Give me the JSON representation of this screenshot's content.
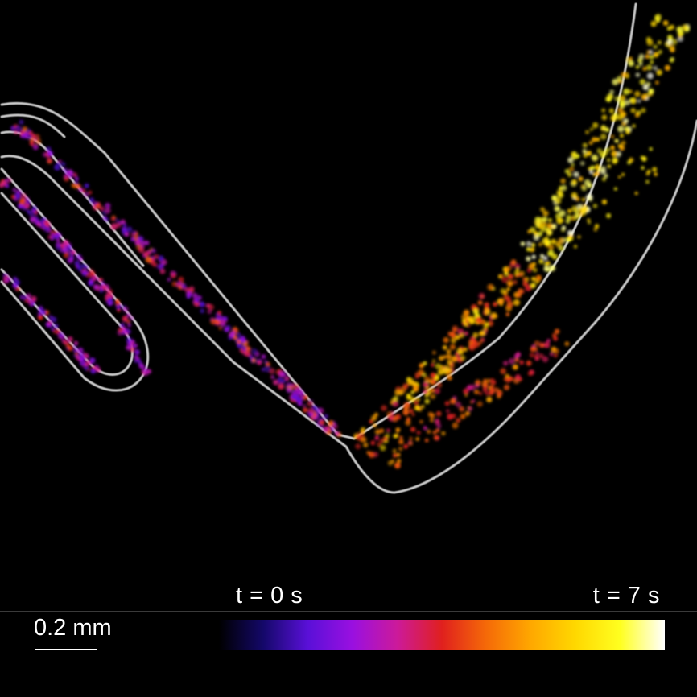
{
  "time_start_label": "t = 0 s",
  "time_end_label": "t = 7 s",
  "scale_label": "0.2 mm",
  "colormap": {
    "stops": [
      "#000000",
      "#14086a",
      "#5a10d8",
      "#9a10e0",
      "#cc1a9a",
      "#e0201e",
      "#f56a08",
      "#ffa800",
      "#ffd800",
      "#ffff20",
      "#ffffff"
    ]
  },
  "colors": {
    "background": "#000000",
    "channel_wall": "#c8c8c8",
    "divider": "#3a3a3a",
    "text": "#ffffff"
  }
}
